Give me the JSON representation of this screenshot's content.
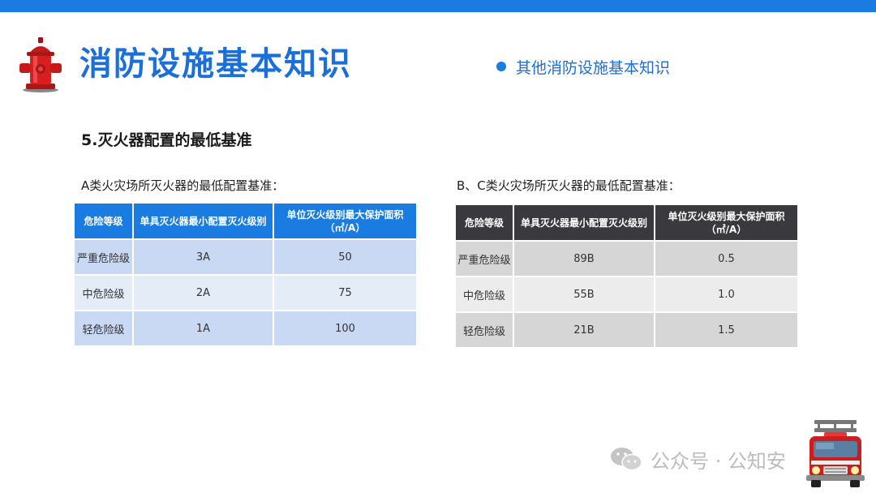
{
  "header": {
    "title": "消防设施基本知识",
    "topic": "其他消防设施基本知识"
  },
  "section": {
    "title": "5.灭火器配置的最低基准"
  },
  "table_a": {
    "caption": "A类火灾场所灭火器的最低配置基准：",
    "headers": [
      "危险等级",
      "单具灭火器最小配置灭火级别",
      "单位灭火级别最大保护面积（㎡/A）"
    ],
    "rows": [
      [
        "严重危险级",
        "3A",
        "50"
      ],
      [
        "中危险级",
        "2A",
        "75"
      ],
      [
        "轻危险级",
        "1A",
        "100"
      ]
    ]
  },
  "table_b": {
    "caption": "B、C类火灾场所灭火器的最低配置基准：",
    "headers": [
      "危险等级",
      "单具灭火器最小配置灭火级别",
      "单位灭火级别最大保护面积（㎡/A）"
    ],
    "rows": [
      [
        "严重危险级",
        "89B",
        "0.5"
      ],
      [
        "中危险级",
        "55B",
        "1.0"
      ],
      [
        "轻危险级",
        "21B",
        "1.5"
      ]
    ]
  },
  "watermark": {
    "text": "公众号 · 公知安"
  },
  "colors": {
    "accent": "#1a7be0",
    "title": "#1a6fd8",
    "table_b_header": "#3a3a3e"
  },
  "icons": {
    "logo": "fire-hydrant-icon",
    "decoration": "fire-truck-icon",
    "watermark": "wechat-icon"
  }
}
